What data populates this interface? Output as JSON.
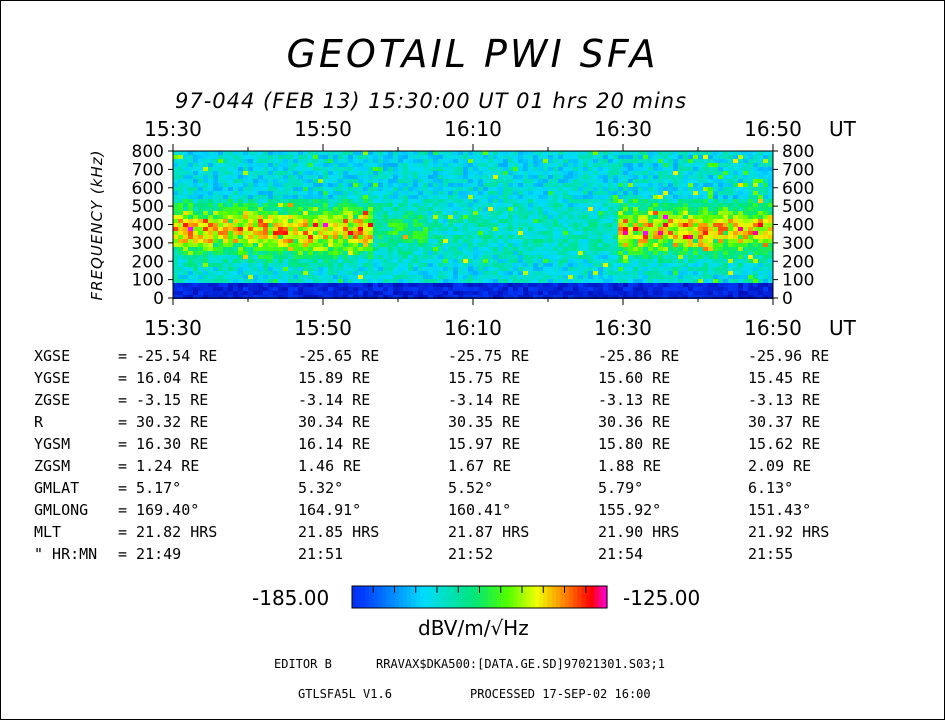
{
  "header": {
    "title": "GEOTAIL PWI SFA",
    "subtitle": "97-044 (FEB 13) 15:30:00 UT 01 hrs 20 mins"
  },
  "chart_data": {
    "type": "heatmap",
    "title": "GEOTAIL PWI SFA",
    "x_ticks": [
      "15:30",
      "15:50",
      "16:10",
      "16:30",
      "16:50"
    ],
    "x_unit": "UT",
    "ylabel": "FREQUENCY (kHz)",
    "y_ticks": [
      "800",
      "700",
      "600",
      "500",
      "400",
      "300",
      "200",
      "100",
      "0"
    ],
    "ylim": [
      0,
      800
    ],
    "colorbar": {
      "min": "-185.00",
      "max": "-125.00",
      "unit": "dBV/m/√Hz",
      "colors": [
        "#0000ff",
        "#00ffff",
        "#00ff00",
        "#ffff00",
        "#ff0000",
        "#ff00ff"
      ]
    }
  },
  "orbit": {
    "rows": [
      {
        "label": "XGSE",
        "values": [
          "= -25.54 RE",
          "-25.65 RE",
          "-25.75 RE",
          "-25.86 RE",
          "-25.96 RE"
        ]
      },
      {
        "label": "YGSE",
        "values": [
          "=  16.04 RE",
          "15.89 RE",
          "15.75 RE",
          "15.60 RE",
          "15.45 RE"
        ]
      },
      {
        "label": "ZGSE",
        "values": [
          "=  -3.15 RE",
          "-3.14 RE",
          "-3.14 RE",
          "-3.13 RE",
          "-3.13 RE"
        ]
      },
      {
        "label": "R",
        "values": [
          "=  30.32 RE",
          "30.34 RE",
          "30.35 RE",
          "30.36 RE",
          "30.37 RE"
        ]
      },
      {
        "label": "YGSM",
        "values": [
          "=  16.30 RE",
          "16.14 RE",
          "15.97 RE",
          "15.80 RE",
          "15.62 RE"
        ]
      },
      {
        "label": "ZGSM",
        "values": [
          "=   1.24 RE",
          "1.46 RE",
          "1.67 RE",
          "1.88 RE",
          "2.09 RE"
        ]
      },
      {
        "label": "GMLAT",
        "values": [
          "=   5.17°",
          "5.32°",
          "5.52°",
          "5.79°",
          "6.13°"
        ]
      },
      {
        "label": "GMLONG",
        "values": [
          "= 169.40°",
          "164.91°",
          "160.41°",
          "155.92°",
          "151.43°"
        ]
      },
      {
        "label": "MLT",
        "values": [
          "=  21.82 HRS",
          "21.85 HRS",
          "21.87 HRS",
          "21.90 HRS",
          "21.92 HRS"
        ]
      },
      {
        "label": "\" HR:MN",
        "values": [
          "=  21:49",
          "21:51",
          "21:52",
          "21:54",
          "21:55"
        ]
      }
    ]
  },
  "footer": {
    "editor": "EDITOR B",
    "path": "RRAVAX$DKA500:[DATA.GE.SD]97021301.S03;1",
    "version": "GTLSFA5L V1.6",
    "processed": "PROCESSED 17-SEP-02  16:00"
  }
}
